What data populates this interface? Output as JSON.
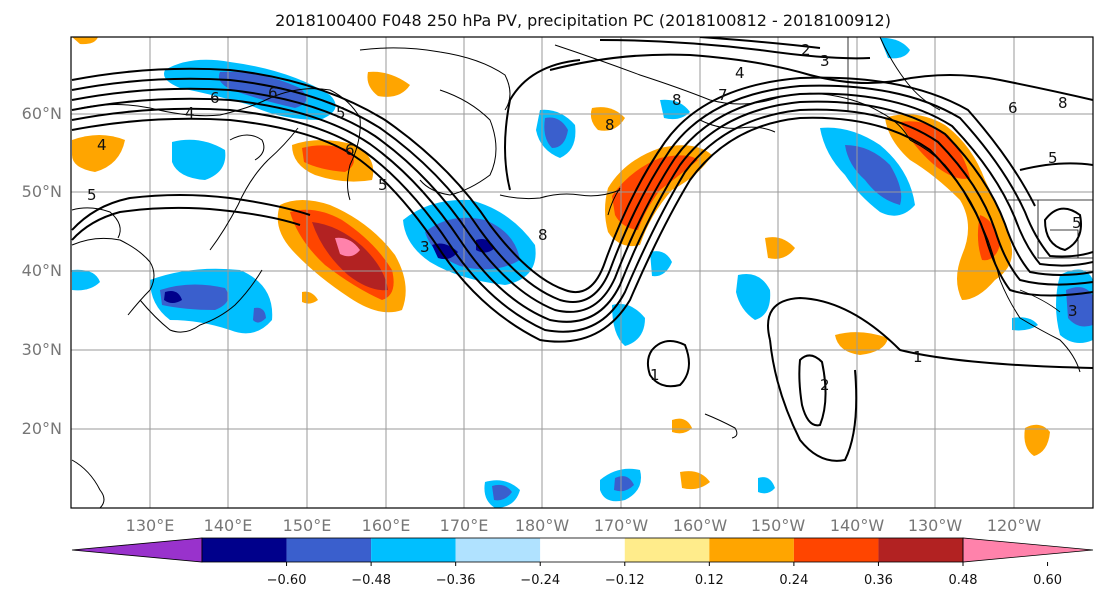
{
  "title": "2018100400 F048 250 hPa PV, precipitation PC (2018100812 - 2018100912)",
  "lat_labels": [
    "60°N",
    "50°N",
    "40°N",
    "30°N",
    "20°N"
  ],
  "lon_labels": [
    "130°E",
    "140°E",
    "150°E",
    "160°E",
    "170°E",
    "180°W",
    "170°W",
    "160°W",
    "150°W",
    "140°W",
    "130°W",
    "120°W"
  ],
  "colorbar": {
    "ticks": [
      "−0.60",
      "−0.48",
      "−0.36",
      "−0.24",
      "−0.12",
      "0.12",
      "0.24",
      "0.36",
      "0.48",
      "0.60"
    ],
    "colors": [
      "#9932cc",
      "#00008b",
      "#3a5fcd",
      "#00bfff",
      "#b0e2ff",
      "#ffffff",
      "#ffec8b",
      "#ffa500",
      "#ff4500",
      "#b22222",
      "#ff82ab"
    ],
    "tick_values": [
      -0.6,
      -0.48,
      -0.36,
      -0.24,
      -0.12,
      0.12,
      0.24,
      0.36,
      0.48,
      0.6
    ]
  },
  "contour_labels": [
    "2",
    "3",
    "4",
    "7",
    "8",
    "6",
    "5",
    "4",
    "6",
    "5",
    "4",
    "5",
    "6",
    "5",
    "3",
    "8",
    "8",
    "6",
    "8",
    "5",
    "1",
    "2",
    "1",
    "3"
  ],
  "colors": {
    "frame": "#000000",
    "grid": "#9a9a9a",
    "coast": "#000000",
    "contour": "#000000"
  }
}
